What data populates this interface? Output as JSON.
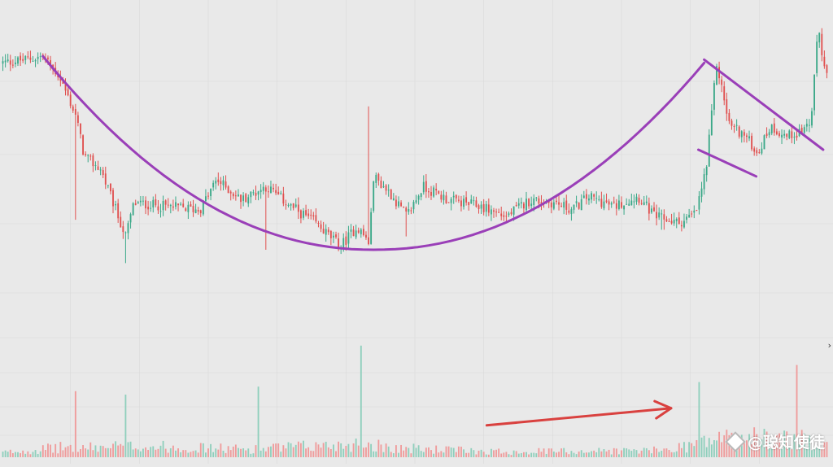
{
  "chart_data": {
    "type": "candlestick",
    "title": "",
    "xlabel": "",
    "ylabel": "",
    "ylim": [
      0,
      100
    ],
    "volume_ylim": [
      0,
      100
    ],
    "grid": true,
    "colors": {
      "up": "#3aa888",
      "down": "#e0504f",
      "up_volume": "#8fcfbc",
      "down_volume": "#ef9b9b",
      "pattern_line": "#9a3fb8",
      "arrow": "#d9413f",
      "grid": "#dadada",
      "background": "#e9e9e9"
    },
    "price_path": [
      {
        "t": 0,
        "p": 86
      },
      {
        "t": 3,
        "p": 87
      },
      {
        "t": 5,
        "p": 88
      },
      {
        "t": 7,
        "p": 82
      },
      {
        "t": 9,
        "p": 70
      },
      {
        "t": 10,
        "p": 58
      },
      {
        "t": 12,
        "p": 54
      },
      {
        "t": 15,
        "p": 34
      },
      {
        "t": 16,
        "p": 44
      },
      {
        "t": 20,
        "p": 43
      },
      {
        "t": 24,
        "p": 42
      },
      {
        "t": 26,
        "p": 51
      },
      {
        "t": 29,
        "p": 45
      },
      {
        "t": 32,
        "p": 49
      },
      {
        "t": 35,
        "p": 43
      },
      {
        "t": 38,
        "p": 38
      },
      {
        "t": 41,
        "p": 31
      },
      {
        "t": 43,
        "p": 37
      },
      {
        "t": 44.5,
        "p": 32
      },
      {
        "t": 45,
        "p": 52
      },
      {
        "t": 47,
        "p": 47
      },
      {
        "t": 49,
        "p": 40
      },
      {
        "t": 51,
        "p": 49
      },
      {
        "t": 54,
        "p": 45
      },
      {
        "t": 58,
        "p": 43
      },
      {
        "t": 61,
        "p": 40
      },
      {
        "t": 64,
        "p": 45
      },
      {
        "t": 67,
        "p": 44
      },
      {
        "t": 69,
        "p": 42
      },
      {
        "t": 71,
        "p": 46
      },
      {
        "t": 74,
        "p": 43
      },
      {
        "t": 77,
        "p": 46
      },
      {
        "t": 79,
        "p": 40
      },
      {
        "t": 82,
        "p": 38
      },
      {
        "t": 84,
        "p": 41
      },
      {
        "t": 85.3,
        "p": 55
      },
      {
        "t": 86.5,
        "p": 86
      },
      {
        "t": 88,
        "p": 68
      },
      {
        "t": 90,
        "p": 64
      },
      {
        "t": 91.5,
        "p": 59
      },
      {
        "t": 93,
        "p": 67
      },
      {
        "t": 95,
        "p": 64
      },
      {
        "t": 97,
        "p": 66
      },
      {
        "t": 98,
        "p": 69
      },
      {
        "t": 98.8,
        "p": 98
      },
      {
        "t": 99.4,
        "p": 86
      },
      {
        "t": 100,
        "p": 80
      }
    ],
    "spikes": [
      {
        "t": 9,
        "low": 39
      },
      {
        "t": 15,
        "low": 26
      },
      {
        "t": 32,
        "low": 30
      },
      {
        "t": 44.5,
        "high": 73
      },
      {
        "t": 49,
        "low": 34
      },
      {
        "t": 80,
        "low": 36
      }
    ],
    "volume_profile": [
      {
        "t": 0,
        "v": 4
      },
      {
        "t": 8,
        "v": 9
      },
      {
        "t": 10,
        "v": 8
      },
      {
        "t": 15,
        "v": 10
      },
      {
        "t": 30,
        "v": 7
      },
      {
        "t": 44,
        "v": 12
      },
      {
        "t": 48,
        "v": 8
      },
      {
        "t": 60,
        "v": 5
      },
      {
        "t": 80,
        "v": 6
      },
      {
        "t": 84,
        "v": 12
      },
      {
        "t": 88,
        "v": 18
      },
      {
        "t": 100,
        "v": 14
      }
    ],
    "volume_spikes": [
      {
        "t": 9,
        "v": 58
      },
      {
        "t": 15,
        "v": 55
      },
      {
        "t": 31,
        "v": 62
      },
      {
        "t": 43.6,
        "v": 98
      },
      {
        "t": 84.3,
        "v": 66
      },
      {
        "t": 96.1,
        "v": 81
      }
    ],
    "annotations": [
      {
        "type": "cup_curve",
        "shape": "rounded bottom",
        "from_t": 5,
        "bottom_t": 45,
        "to_t": 85,
        "price_start": 88,
        "price_bottom": 30,
        "price_end": 86
      },
      {
        "type": "flag_upper",
        "from": {
          "t": 85,
          "p": 87
        },
        "to": {
          "t": 99.4,
          "p": 60
        }
      },
      {
        "type": "flag_lower",
        "from": {
          "t": 84.3,
          "p": 60
        },
        "to": {
          "t": 91.3,
          "p": 52
        }
      },
      {
        "type": "arrow",
        "target": "volume",
        "from": {
          "t": 58.7,
          "v": 28
        },
        "to": {
          "t": 81,
          "v": 43
        }
      }
    ]
  },
  "watermark": {
    "text": "@聪知使徒",
    "icon": "diamond-logo-icon"
  },
  "scroll_indicator": "›"
}
